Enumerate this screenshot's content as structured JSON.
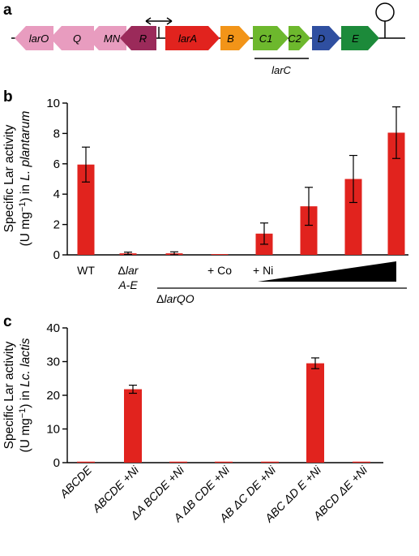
{
  "panels": {
    "a": "a",
    "b": "b",
    "c": "c"
  },
  "chart_data": [
    {
      "panel": "a",
      "type": "other",
      "description_labels": [
        "larO",
        "Q",
        "MN",
        "R",
        "larA",
        "B",
        "C1",
        "C2",
        "D",
        "E"
      ],
      "genes": [
        {
          "label": "larO",
          "color": "#e89cbf",
          "direction": "left"
        },
        {
          "label": "Q",
          "color": "#e89cbf",
          "direction": "left"
        },
        {
          "label": "MN",
          "color": "#e89cbf",
          "direction": "left"
        },
        {
          "label": "R",
          "color": "#9b2a5a",
          "direction": "left"
        },
        {
          "label": "larA",
          "color": "#e1231e",
          "direction": "right"
        },
        {
          "label": "B",
          "color": "#f29418",
          "direction": "right"
        },
        {
          "label": "C1",
          "color": "#6db82d",
          "direction": "right"
        },
        {
          "label": "C2",
          "color": "#6db82d",
          "direction": "right"
        },
        {
          "label": "D",
          "color": "#2f4fa0",
          "direction": "right"
        },
        {
          "label": "E",
          "color": "#1c8a3a",
          "direction": "right"
        }
      ],
      "bracket_label": "larC"
    },
    {
      "panel": "b",
      "type": "bar",
      "ylabel_prefix": "Specific Lar activity",
      "ylabel_line2_pre": "(U mg",
      "ylabel_line2_sup": "−1",
      "ylabel_line2_post": ") in ",
      "ylabel_organism": "L. plantarum",
      "ylim": [
        0,
        10
      ],
      "yticks": [
        "0",
        "2",
        "4",
        "6",
        "8",
        "10"
      ],
      "values": [
        5.95,
        0.1,
        0.1,
        0.05,
        1.4,
        3.2,
        5.0,
        8.05
      ],
      "errors": [
        1.15,
        0.08,
        0.1,
        0.0,
        0.7,
        1.25,
        1.55,
        1.7
      ],
      "bar_color": "#e1231e",
      "labels": {
        "wt": "WT",
        "delta1_line1": "Δ",
        "delta1_line1b": "lar",
        "delta1_line2": "A-E",
        "co": "+ Co",
        "ni": "+ Ni",
        "group_delta": "Δ",
        "group_name": "larQO"
      }
    },
    {
      "panel": "c",
      "type": "bar",
      "ylabel_prefix": "Specific Lar activity",
      "ylabel_line2_pre": "(U mg",
      "ylabel_line2_sup": "−1",
      "ylabel_line2_post": ") in ",
      "ylabel_organism": "Lc. lactis",
      "ylim": [
        0,
        40
      ],
      "yticks": [
        "0",
        "10",
        "20",
        "30",
        "40"
      ],
      "categories": [
        "ABCDE",
        "ABCDE +Ni",
        "ΔA BCDE +Ni",
        "A ΔB CDE +Ni",
        "AB ΔC DE +Ni",
        "ABC ΔD E +Ni",
        "ABCD ΔE +Ni"
      ],
      "values": [
        0.3,
        21.8,
        0.3,
        0.3,
        0.3,
        29.5,
        0.3
      ],
      "errors": [
        0.0,
        1.2,
        0.0,
        0.0,
        0.0,
        1.6,
        0.0
      ],
      "bar_color": "#e1231e"
    }
  ]
}
